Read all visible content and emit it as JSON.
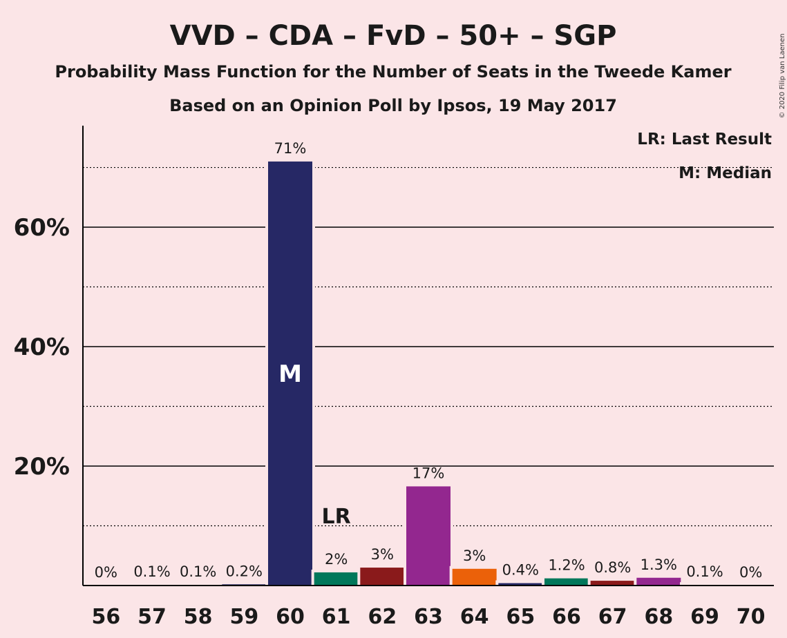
{
  "chart_data": {
    "type": "bar",
    "title": "VVD – CDA – FvD – 50+ – SGP",
    "subtitle": "Probability Mass Function for the Number of Seats in the Tweede Kamer",
    "subtitle2": "Based on an Opinion Poll by Ipsos, 19 May 2017",
    "copyright": "© 2020 Filip van Laenen",
    "legend": {
      "lr": "LR: Last Result",
      "m": "M: Median",
      "placement": "top-right"
    },
    "categories": [
      "56",
      "57",
      "58",
      "59",
      "60",
      "61",
      "62",
      "63",
      "64",
      "65",
      "66",
      "67",
      "68",
      "69",
      "70"
    ],
    "values": [
      0,
      0.1,
      0.1,
      0.2,
      71,
      2.2,
      3,
      16.6,
      2.8,
      0.4,
      1.2,
      0.8,
      1.3,
      0.1,
      0
    ],
    "data_labels": [
      "0%",
      "0.1%",
      "0.1%",
      "0.2%",
      "71%",
      "2%",
      "3%",
      "17%",
      "3%",
      "0.4%",
      "1.2%",
      "0.8%",
      "1.3%",
      "0.1%",
      "0%"
    ],
    "colors": [
      "#262865",
      "#262865",
      "#262865",
      "#262865",
      "#262865",
      "#00775A",
      "#8A1A1B",
      "#93278F",
      "#EB6109",
      "#262865",
      "#00775A",
      "#8A1A1B",
      "#93278F",
      "#262865",
      "#262865"
    ],
    "y_ticks": [
      {
        "value": 20,
        "label": "20%"
      },
      {
        "value": 40,
        "label": "40%"
      },
      {
        "value": 60,
        "label": "60%"
      }
    ],
    "ylim": [
      0,
      77
    ],
    "minor_grid": [
      10,
      30,
      50,
      70
    ],
    "last_result_category": "61",
    "last_result_label": "LR",
    "median_category": "60",
    "median_label": "M",
    "grid": true
  }
}
